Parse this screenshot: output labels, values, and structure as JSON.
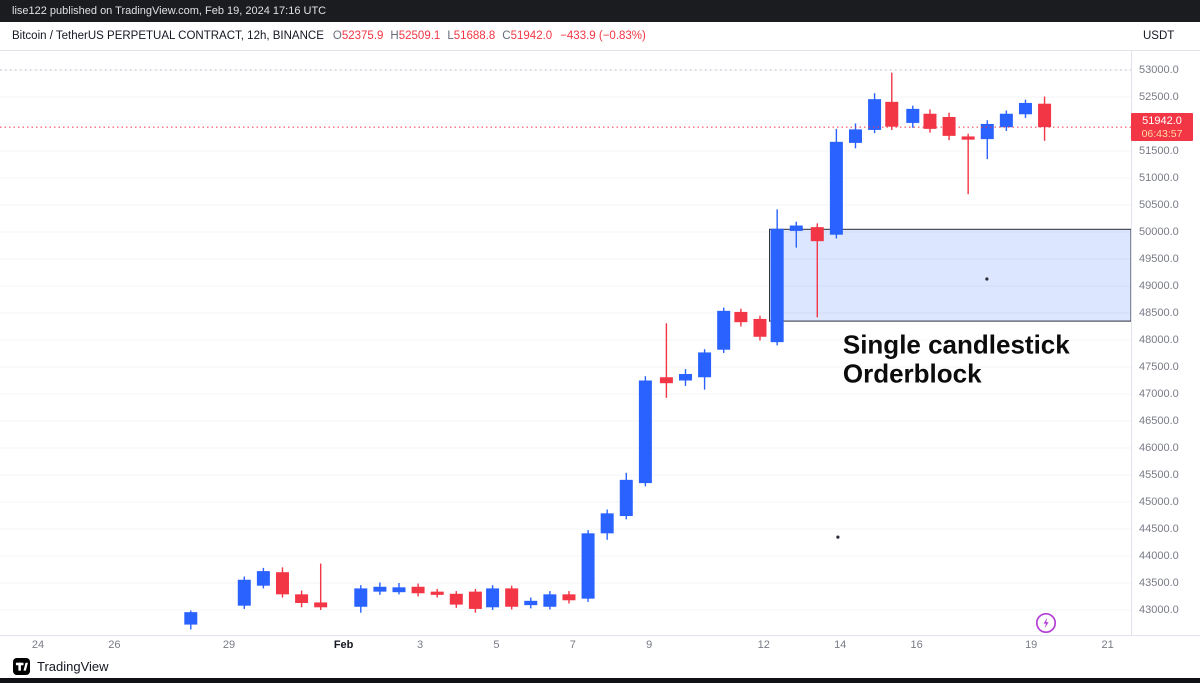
{
  "topbar": {
    "text": "lise122 published on TradingView.com, Feb 19, 2024 17:16 UTC"
  },
  "header": {
    "symbol": "Bitcoin / TetherUS PERPETUAL CONTRACT, 12h, BINANCE",
    "ohlc": [
      {
        "k": "O",
        "v": "52375.9"
      },
      {
        "k": "H",
        "v": "52509.1"
      },
      {
        "k": "L",
        "v": "51688.8"
      },
      {
        "k": "C",
        "v": "51942.0"
      }
    ],
    "change": "−433.9 (−0.83%)",
    "currency": "USDT"
  },
  "chart_data": {
    "type": "candlestick",
    "title": "Bitcoin / TetherUS Perpetual Contract 12h (BINANCE)",
    "interval": "12h",
    "y_axis": {
      "max": 53000,
      "min": 43000,
      "step": 500,
      "labels": [
        "53000.0",
        "52500.0",
        "52000.0",
        "51500.0",
        "51000.0",
        "50500.0",
        "50000.0",
        "49500.0",
        "49000.0",
        "48500.0",
        "48000.0",
        "47500.0",
        "47000.0",
        "46500.0",
        "46000.0",
        "45500.0",
        "45000.0",
        "44500.0",
        "44000.0",
        "43500.0",
        "43000.0"
      ]
    },
    "x_axis": {
      "unit_days": 1,
      "ticks": [
        {
          "label": "24",
          "t": 0
        },
        {
          "label": "26",
          "t": 2
        },
        {
          "label": "29",
          "t": 5
        },
        {
          "label": "Feb",
          "t": 8,
          "major": true
        },
        {
          "label": "3",
          "t": 10
        },
        {
          "label": "5",
          "t": 12
        },
        {
          "label": "7",
          "t": 14
        },
        {
          "label": "9",
          "t": 16
        },
        {
          "label": "12",
          "t": 19
        },
        {
          "label": "14",
          "t": 21
        },
        {
          "label": "16",
          "t": 23
        },
        {
          "label": "19",
          "t": 26
        },
        {
          "label": "21",
          "t": 28
        }
      ]
    },
    "candles": [
      [
        4.0,
        42730,
        42990,
        42640,
        42960
      ],
      [
        5.4,
        43080,
        43620,
        43020,
        43560
      ],
      [
        5.9,
        43450,
        43780,
        43400,
        43720
      ],
      [
        6.4,
        43700,
        43790,
        43230,
        43290
      ],
      [
        6.9,
        43290,
        43360,
        43050,
        43130
      ],
      [
        7.4,
        43140,
        43860,
        43000,
        43050
      ],
      [
        8.45,
        43060,
        43460,
        42950,
        43400
      ],
      [
        8.95,
        43340,
        43510,
        43280,
        43430
      ],
      [
        9.45,
        43330,
        43500,
        43290,
        43420
      ],
      [
        9.95,
        43430,
        43490,
        43250,
        43310
      ],
      [
        10.45,
        43340,
        43390,
        43230,
        43280
      ],
      [
        10.95,
        43300,
        43350,
        43040,
        43100
      ],
      [
        11.45,
        43340,
        43390,
        42950,
        43020
      ],
      [
        11.9,
        43050,
        43460,
        43000,
        43400
      ],
      [
        12.4,
        43400,
        43450,
        43010,
        43060
      ],
      [
        12.9,
        43090,
        43230,
        43030,
        43170
      ],
      [
        13.4,
        43060,
        43350,
        43010,
        43290
      ],
      [
        13.9,
        43290,
        43350,
        43120,
        43180
      ],
      [
        14.4,
        43210,
        44480,
        43150,
        44420
      ],
      [
        14.9,
        44420,
        44860,
        44300,
        44790
      ],
      [
        15.4,
        44740,
        45540,
        44680,
        45410
      ],
      [
        15.9,
        45350,
        47330,
        45290,
        47250
      ],
      [
        16.45,
        47310,
        48310,
        46930,
        47200
      ],
      [
        16.95,
        47250,
        47460,
        47150,
        47370
      ],
      [
        17.45,
        47310,
        47830,
        47080,
        47770
      ],
      [
        17.95,
        47820,
        48600,
        47760,
        48540
      ],
      [
        18.4,
        48520,
        48580,
        48250,
        48330
      ],
      [
        18.9,
        48390,
        48450,
        47990,
        48060
      ],
      [
        19.35,
        47960,
        50420,
        47900,
        50060
      ],
      [
        19.85,
        50020,
        50190,
        49710,
        50120
      ],
      [
        20.4,
        50090,
        50160,
        48420,
        49830
      ],
      [
        20.9,
        49950,
        51910,
        49880,
        51670
      ],
      [
        21.4,
        51650,
        52010,
        51550,
        51900
      ],
      [
        21.9,
        51890,
        52570,
        51830,
        52460
      ],
      [
        22.35,
        52410,
        52950,
        51890,
        51950
      ],
      [
        22.9,
        52020,
        52340,
        51930,
        52280
      ],
      [
        23.35,
        52190,
        52270,
        51840,
        51910
      ],
      [
        23.85,
        52130,
        52210,
        51700,
        51780
      ],
      [
        24.35,
        51770,
        51820,
        50700,
        51710
      ],
      [
        24.85,
        51720,
        52070,
        51350,
        52000
      ],
      [
        25.35,
        51940,
        52250,
        51870,
        52190
      ],
      [
        25.85,
        52180,
        52450,
        52110,
        52390
      ],
      [
        26.35,
        52375.9,
        52509.1,
        51688.8,
        51942.0
      ]
    ],
    "colors": {
      "up": "#2962ff",
      "down": "#f23645"
    },
    "dotted_level": 53000,
    "price_line": {
      "value": 51942.0,
      "label": "51942.0",
      "countdown": "06:43:57",
      "color": "#f23645"
    },
    "orderblock": {
      "t_start": 19.15,
      "price_top": 50050,
      "price_bottom": 48350,
      "fill": "#2962ff",
      "fill_opacity": 0.16,
      "border": "#2a2e39"
    },
    "annotation": {
      "t": 21.07,
      "price": 48110,
      "lines": [
        "Single candlestick",
        "Orderblock"
      ],
      "font_size": 26,
      "color": "#0c0c0c"
    },
    "dots": [
      {
        "t": 24.84,
        "price": 49130
      },
      {
        "t": 20.94,
        "price": 44350
      }
    ],
    "legend_position": "none",
    "grid": "faint-horizontal"
  },
  "boost_button": {
    "color": "#b43fd6"
  },
  "footer": {
    "brand": "TradingView"
  }
}
